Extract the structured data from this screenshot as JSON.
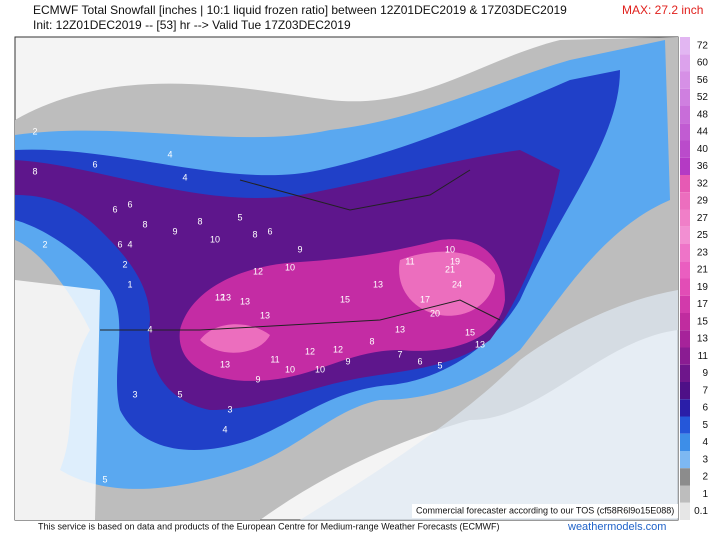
{
  "header": {
    "title": "ECMWF Total Snowfall [inches | 10:1 liquid frozen ratio] between 12Z01DEC2019 & 17Z03DEC2019",
    "subtitle": "Init: 12Z01DEC2019 -- [53] hr --> Valid Tue 17Z03DEC2019",
    "max": "MAX: 27.2 inch"
  },
  "colorbar": {
    "levels": [
      72,
      60,
      56,
      52,
      48,
      44,
      40,
      36,
      32,
      29,
      27,
      25,
      23,
      21,
      19,
      17,
      15,
      13,
      11,
      9,
      7,
      6,
      5,
      4,
      3,
      2,
      1,
      0.1
    ],
    "colors": [
      "#e2b6f2",
      "#dca2ec",
      "#d690e6",
      "#cf7fe0",
      "#c86dd9",
      "#c15cd2",
      "#ba4bcb",
      "#b43ac4",
      "#e65ab4",
      "#ec6ebe",
      "#f07fc8",
      "#f28fd2",
      "#ee74c8",
      "#ea5ec0",
      "#e24db6",
      "#d23aab",
      "#c02c9f",
      "#a6239a",
      "#8a1c92",
      "#6e168b",
      "#4e1087",
      "#2a1ea8",
      "#2557d9",
      "#3d8ee8",
      "#7db8f2",
      "#8c8c8c",
      "#bdbdbd",
      "#e6e6e6"
    ]
  },
  "map": {
    "labels": [
      2,
      4,
      6,
      8,
      6,
      6,
      8,
      6,
      4,
      8,
      9,
      10,
      6,
      5,
      9,
      8,
      12,
      10,
      13,
      12,
      13,
      13,
      11,
      10,
      13,
      9,
      15,
      13,
      11,
      10,
      17,
      19,
      21,
      24,
      20,
      13,
      15,
      13,
      12,
      12,
      10,
      9,
      8,
      7,
      6,
      5,
      4,
      4,
      3,
      5,
      5,
      4,
      3,
      2,
      1,
      2
    ]
  },
  "overlay": {
    "tos": "Commercial forecaster according to our TOS (cf58R6l9o15E088)"
  },
  "footer": {
    "credit": "This service is based on data and products of the European Centre for Medium-range Weather Forecasts (ECMWF)",
    "site": "weathermodels.com"
  }
}
